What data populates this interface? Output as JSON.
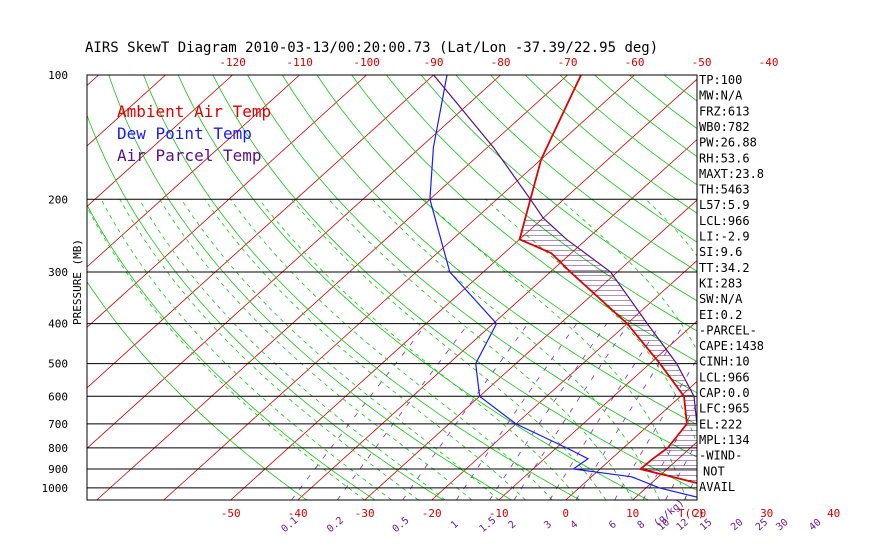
{
  "chart_data": {
    "type": "line",
    "title": "AIRS SkewT Diagram 2010-03-13/00:20:00.73 (Lat/Lon -37.39/22.95 deg)",
    "ylabel": "PRESSURE (MB)",
    "xlabel": "T(C)",
    "mixing_ratio_unit": "(g/kg)",
    "pressure_levels": [
      100,
      200,
      300,
      400,
      500,
      600,
      700,
      800,
      900,
      1000
    ],
    "pressure_range": [
      1070,
      100
    ],
    "bottom_temp_ticks": [
      -50,
      -40,
      -30,
      -20,
      -10,
      0,
      10,
      20,
      30,
      40
    ],
    "top_temp_ticks": [
      -120,
      -110,
      -100,
      -90,
      -80,
      -70,
      -60,
      -50,
      -40
    ],
    "mixing_ratio_labels": [
      "0.1",
      "0.2",
      "0.5",
      "1",
      "1.5",
      "2",
      "3",
      "4",
      "6",
      "8",
      "10",
      "12",
      "15",
      "20",
      "25",
      "30",
      "40"
    ],
    "legend": [
      {
        "label": "Ambient Air Temp",
        "color": "#e00000"
      },
      {
        "label": "Dew Point Temp",
        "color": "#1a1aff"
      },
      {
        "label": "Air Parcel Temp",
        "color": "#5a0f8a"
      }
    ],
    "series": [
      {
        "name": "Ambient Air Temp",
        "color": "#e00000",
        "points": [
          [
            1060,
            25
          ],
          [
            1000,
            20.5
          ],
          [
            940,
            12
          ],
          [
            900,
            6
          ],
          [
            850,
            6.2
          ],
          [
            800,
            6.6
          ],
          [
            700,
            5.5
          ],
          [
            600,
            0.5
          ],
          [
            500,
            -8.5
          ],
          [
            400,
            -20
          ],
          [
            300,
            -37
          ],
          [
            270,
            -43
          ],
          [
            250,
            -50
          ],
          [
            200,
            -55
          ],
          [
            160,
            -60
          ],
          [
            100,
            -68
          ]
        ]
      },
      {
        "name": "Dew Point Temp",
        "color": "#1a1aff",
        "points": [
          [
            1060,
            20
          ],
          [
            1000,
            12
          ],
          [
            940,
            6
          ],
          [
            900,
            -4
          ],
          [
            850,
            -3.5
          ],
          [
            800,
            -8.5
          ],
          [
            700,
            -20
          ],
          [
            600,
            -30
          ],
          [
            500,
            -36
          ],
          [
            400,
            -39.5
          ],
          [
            300,
            -55
          ],
          [
            200,
            -70
          ],
          [
            150,
            -78
          ],
          [
            100,
            -88
          ]
        ]
      },
      {
        "name": "Air Parcel Temp",
        "color": "#5a0f8a",
        "points": [
          [
            1060,
            25
          ],
          [
            1000,
            20.6
          ],
          [
            966,
            17
          ],
          [
            900,
            15
          ],
          [
            800,
            12
          ],
          [
            700,
            7
          ],
          [
            600,
            2
          ],
          [
            500,
            -6
          ],
          [
            400,
            -17
          ],
          [
            300,
            -31
          ],
          [
            250,
            -43
          ],
          [
            222,
            -50
          ],
          [
            200,
            -55
          ],
          [
            150,
            -69
          ],
          [
            100,
            -90
          ]
        ]
      }
    ]
  },
  "indices": [
    "TP:100",
    "MW:N/A",
    "FRZ:613",
    "WB0:782",
    "PW:26.88",
    "RH:53.6",
    "MAXT:23.8",
    "TH:5463",
    "L57:5.9",
    "LCL:966",
    "LI:-2.9",
    "SI:9.6",
    "TT:34.2",
    "KI:283",
    "SW:N/A",
    "EI:0.2",
    "-PARCEL-",
    "CAPE:1438",
    "CINH:10",
    "LCL:966",
    "CAP:0.0",
    "LFC:965",
    "EL:222",
    "MPL:134",
    "-WIND-",
    "NOT",
    "AVAIL"
  ]
}
